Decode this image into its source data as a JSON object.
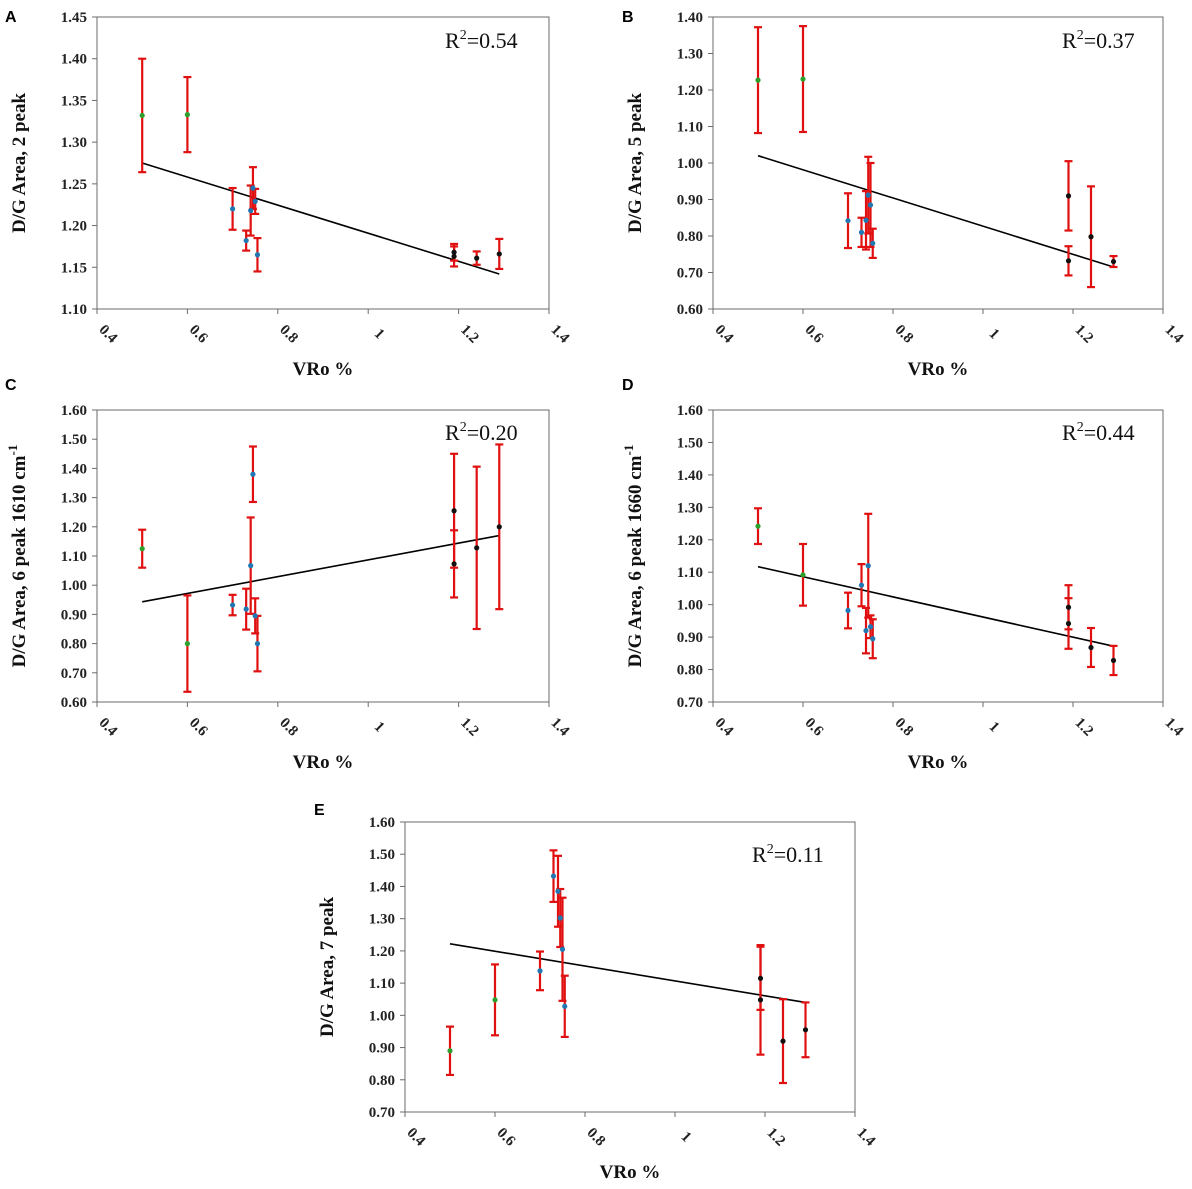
{
  "chart_data": [
    {
      "type": "scatter",
      "panel": "A",
      "xlabel": "VRo %",
      "ylabel": "D/G Area, 2 peak",
      "ylabel_sup": "",
      "annotation": {
        "prefix": "R",
        "sup": "2",
        "value": "=0.54"
      },
      "xlim": [
        0.4,
        1.4
      ],
      "ylim": [
        1.1,
        1.45
      ],
      "x_ticks": [
        0.4,
        0.6,
        0.8,
        1,
        1.2,
        1.4
      ],
      "x_tick_labels": [
        "0.4",
        "0.6",
        "0.8",
        "1",
        "1.2",
        "1.4"
      ],
      "y_ticks": [
        1.1,
        1.15,
        1.2,
        1.25,
        1.3,
        1.35,
        1.4,
        1.45
      ],
      "y_tick_labels": [
        "1.10",
        "1.15",
        "1.20",
        "1.25",
        "1.30",
        "1.35",
        "1.40",
        "1.45"
      ],
      "trendline": {
        "x": [
          0.5,
          1.29
        ],
        "y": [
          1.275,
          1.142
        ]
      },
      "points": [
        {
          "x": 0.5,
          "y": 1.332,
          "err": 0.068,
          "c": "#2ca02c"
        },
        {
          "x": 0.6,
          "y": 1.333,
          "err": 0.045,
          "c": "#2ca02c"
        },
        {
          "x": 0.7,
          "y": 1.22,
          "err": 0.025,
          "c": "#1f77b4"
        },
        {
          "x": 0.73,
          "y": 1.182,
          "err": 0.012,
          "c": "#1f77b4"
        },
        {
          "x": 0.74,
          "y": 1.218,
          "err": 0.03,
          "c": "#1f77b4"
        },
        {
          "x": 0.745,
          "y": 1.245,
          "err": 0.025,
          "c": "#1f77b4"
        },
        {
          "x": 0.75,
          "y": 1.229,
          "err": 0.015,
          "c": "#1f77b4"
        },
        {
          "x": 0.755,
          "y": 1.165,
          "err": 0.02,
          "c": "#1f77b4"
        },
        {
          "x": 1.19,
          "y": 1.163,
          "err": 0.012,
          "c": "#111111"
        },
        {
          "x": 1.19,
          "y": 1.168,
          "err": 0.01,
          "c": "#111111"
        },
        {
          "x": 1.24,
          "y": 1.161,
          "err": 0.008,
          "c": "#111111"
        },
        {
          "x": 1.29,
          "y": 1.166,
          "err": 0.018,
          "c": "#111111"
        }
      ]
    },
    {
      "type": "scatter",
      "panel": "B",
      "xlabel": "VRo %",
      "ylabel": "D/G Area, 5 peak",
      "ylabel_sup": "",
      "annotation": {
        "prefix": "R",
        "sup": "2",
        "value": "=0.37"
      },
      "xlim": [
        0.4,
        1.4
      ],
      "ylim": [
        0.6,
        1.4
      ],
      "x_ticks": [
        0.4,
        0.6,
        0.8,
        1,
        1.2,
        1.4
      ],
      "x_tick_labels": [
        "0.4",
        "0.6",
        "0.8",
        "1",
        "1.2",
        "1.4"
      ],
      "y_ticks": [
        0.6,
        0.7,
        0.8,
        0.9,
        1.0,
        1.1,
        1.2,
        1.3,
        1.4
      ],
      "y_tick_labels": [
        "0.60",
        "0.70",
        "0.80",
        "0.90",
        "1.00",
        "1.10",
        "1.20",
        "1.30",
        "1.40"
      ],
      "trendline": {
        "x": [
          0.5,
          1.29
        ],
        "y": [
          1.02,
          0.715
        ]
      },
      "points": [
        {
          "x": 0.5,
          "y": 1.227,
          "err": 0.145,
          "c": "#2ca02c"
        },
        {
          "x": 0.6,
          "y": 1.23,
          "err": 0.145,
          "c": "#2ca02c"
        },
        {
          "x": 0.7,
          "y": 0.842,
          "err": 0.075,
          "c": "#1f77b4"
        },
        {
          "x": 0.73,
          "y": 0.81,
          "err": 0.04,
          "c": "#1f77b4"
        },
        {
          "x": 0.74,
          "y": 0.843,
          "err": 0.08,
          "c": "#1f77b4"
        },
        {
          "x": 0.745,
          "y": 0.912,
          "err": 0.105,
          "c": "#1f77b4"
        },
        {
          "x": 0.75,
          "y": 0.885,
          "err": 0.115,
          "c": "#1f77b4"
        },
        {
          "x": 0.755,
          "y": 0.78,
          "err": 0.04,
          "c": "#1f77b4"
        },
        {
          "x": 1.19,
          "y": 0.91,
          "err": 0.095,
          "c": "#111111"
        },
        {
          "x": 1.19,
          "y": 0.732,
          "err": 0.04,
          "c": "#111111"
        },
        {
          "x": 1.24,
          "y": 0.798,
          "err": 0.138,
          "c": "#111111"
        },
        {
          "x": 1.29,
          "y": 0.73,
          "err": 0.015,
          "c": "#111111"
        }
      ]
    },
    {
      "type": "scatter",
      "panel": "C",
      "xlabel": "VRo %",
      "ylabel": "D/G Area, 6 peak 1610 cm",
      "ylabel_sup": "-1",
      "annotation": {
        "prefix": "R",
        "sup": "2",
        "value": "=0.20"
      },
      "xlim": [
        0.4,
        1.4
      ],
      "ylim": [
        0.6,
        1.6
      ],
      "x_ticks": [
        0.4,
        0.6,
        0.8,
        1,
        1.2,
        1.4
      ],
      "x_tick_labels": [
        "0.4",
        "0.6",
        "0.8",
        "1",
        "1.2",
        "1.4"
      ],
      "y_ticks": [
        0.6,
        0.7,
        0.8,
        0.9,
        1.0,
        1.1,
        1.2,
        1.3,
        1.4,
        1.5,
        1.6
      ],
      "y_tick_labels": [
        "0.60",
        "0.70",
        "0.80",
        "0.90",
        "1.00",
        "1.10",
        "1.20",
        "1.30",
        "1.40",
        "1.50",
        "1.60"
      ],
      "trendline": {
        "x": [
          0.5,
          1.29
        ],
        "y": [
          0.943,
          1.17
        ]
      },
      "points": [
        {
          "x": 0.5,
          "y": 1.125,
          "err": 0.065,
          "c": "#2ca02c"
        },
        {
          "x": 0.6,
          "y": 0.8,
          "err": 0.165,
          "c": "#2ca02c"
        },
        {
          "x": 0.7,
          "y": 0.932,
          "err": 0.035,
          "c": "#1f77b4"
        },
        {
          "x": 0.73,
          "y": 0.918,
          "err": 0.07,
          "c": "#1f77b4"
        },
        {
          "x": 0.74,
          "y": 1.067,
          "err": 0.165,
          "c": "#1f77b4"
        },
        {
          "x": 0.745,
          "y": 1.38,
          "err": 0.095,
          "c": "#1f77b4"
        },
        {
          "x": 0.75,
          "y": 0.895,
          "err": 0.06,
          "c": "#1f77b4"
        },
        {
          "x": 0.755,
          "y": 0.8,
          "err": 0.095,
          "c": "#1f77b4"
        },
        {
          "x": 1.19,
          "y": 1.255,
          "err": 0.195,
          "c": "#111111"
        },
        {
          "x": 1.19,
          "y": 1.073,
          "err": 0.115,
          "c": "#111111"
        },
        {
          "x": 1.24,
          "y": 1.128,
          "err": 0.278,
          "c": "#111111"
        },
        {
          "x": 1.29,
          "y": 1.2,
          "err": 0.282,
          "c": "#111111"
        }
      ]
    },
    {
      "type": "scatter",
      "panel": "D",
      "xlabel": "VRo %",
      "ylabel": "D/G Area, 6 peak 1660 cm",
      "ylabel_sup": "-1",
      "annotation": {
        "prefix": "R",
        "sup": "2",
        "value": "=0.44"
      },
      "xlim": [
        0.4,
        1.4
      ],
      "ylim": [
        0.7,
        1.6
      ],
      "x_ticks": [
        0.4,
        0.6,
        0.8,
        1,
        1.2,
        1.4
      ],
      "x_tick_labels": [
        "0.4",
        "0.6",
        "0.8",
        "1",
        "1.2",
        "1.4"
      ],
      "y_ticks": [
        0.7,
        0.8,
        0.9,
        1.0,
        1.1,
        1.2,
        1.3,
        1.4,
        1.5,
        1.6
      ],
      "y_tick_labels": [
        "0.70",
        "0.80",
        "0.90",
        "1.00",
        "1.10",
        "1.20",
        "1.30",
        "1.40",
        "1.50",
        "1.60"
      ],
      "trendline": {
        "x": [
          0.5,
          1.29
        ],
        "y": [
          1.117,
          0.872
        ]
      },
      "points": [
        {
          "x": 0.5,
          "y": 1.242,
          "err": 0.055,
          "c": "#2ca02c"
        },
        {
          "x": 0.6,
          "y": 1.092,
          "err": 0.095,
          "c": "#2ca02c"
        },
        {
          "x": 0.7,
          "y": 0.982,
          "err": 0.055,
          "c": "#1f77b4"
        },
        {
          "x": 0.73,
          "y": 1.06,
          "err": 0.065,
          "c": "#1f77b4"
        },
        {
          "x": 0.74,
          "y": 0.92,
          "err": 0.07,
          "c": "#1f77b4"
        },
        {
          "x": 0.745,
          "y": 1.12,
          "err": 0.16,
          "c": "#1f77b4"
        },
        {
          "x": 0.75,
          "y": 0.932,
          "err": 0.035,
          "c": "#1f77b4"
        },
        {
          "x": 0.755,
          "y": 0.895,
          "err": 0.06,
          "c": "#1f77b4"
        },
        {
          "x": 1.19,
          "y": 0.992,
          "err": 0.068,
          "c": "#111111"
        },
        {
          "x": 1.19,
          "y": 0.942,
          "err": 0.078,
          "c": "#111111"
        },
        {
          "x": 1.24,
          "y": 0.868,
          "err": 0.06,
          "c": "#111111"
        },
        {
          "x": 1.29,
          "y": 0.828,
          "err": 0.045,
          "c": "#111111"
        }
      ]
    },
    {
      "type": "scatter",
      "panel": "E",
      "xlabel": "VRo %",
      "ylabel": "D/G Area, 7 peak",
      "ylabel_sup": "",
      "annotation": {
        "prefix": "R",
        "sup": "2",
        "value": "=0.11"
      },
      "xlim": [
        0.4,
        1.4
      ],
      "ylim": [
        0.7,
        1.6
      ],
      "x_ticks": [
        0.4,
        0.6,
        0.8,
        1,
        1.2,
        1.4
      ],
      "x_tick_labels": [
        "0.4",
        "0.6",
        "0.8",
        "1",
        "1.2",
        "1.4"
      ],
      "y_ticks": [
        0.7,
        0.8,
        0.9,
        1.0,
        1.1,
        1.2,
        1.3,
        1.4,
        1.5,
        1.6
      ],
      "y_tick_labels": [
        "0.70",
        "0.80",
        "0.90",
        "1.00",
        "1.10",
        "1.20",
        "1.30",
        "1.40",
        "1.50",
        "1.60"
      ],
      "trendline": {
        "x": [
          0.5,
          1.29
        ],
        "y": [
          1.222,
          1.04
        ]
      },
      "points": [
        {
          "x": 0.5,
          "y": 0.89,
          "err": 0.075,
          "c": "#2ca02c"
        },
        {
          "x": 0.6,
          "y": 1.048,
          "err": 0.11,
          "c": "#2ca02c"
        },
        {
          "x": 0.7,
          "y": 1.138,
          "err": 0.06,
          "c": "#1f77b4"
        },
        {
          "x": 0.73,
          "y": 1.432,
          "err": 0.08,
          "c": "#1f77b4"
        },
        {
          "x": 0.74,
          "y": 1.385,
          "err": 0.11,
          "c": "#1f77b4"
        },
        {
          "x": 0.745,
          "y": 1.302,
          "err": 0.09,
          "c": "#1f77b4"
        },
        {
          "x": 0.75,
          "y": 1.205,
          "err": 0.16,
          "c": "#1f77b4"
        },
        {
          "x": 0.755,
          "y": 1.028,
          "err": 0.095,
          "c": "#1f77b4"
        },
        {
          "x": 1.19,
          "y": 1.115,
          "err": 0.098,
          "c": "#111111"
        },
        {
          "x": 1.19,
          "y": 1.048,
          "err": 0.17,
          "c": "#111111"
        },
        {
          "x": 1.24,
          "y": 0.92,
          "err": 0.13,
          "c": "#111111"
        },
        {
          "x": 1.29,
          "y": 0.955,
          "err": 0.085,
          "c": "#111111"
        }
      ]
    }
  ]
}
